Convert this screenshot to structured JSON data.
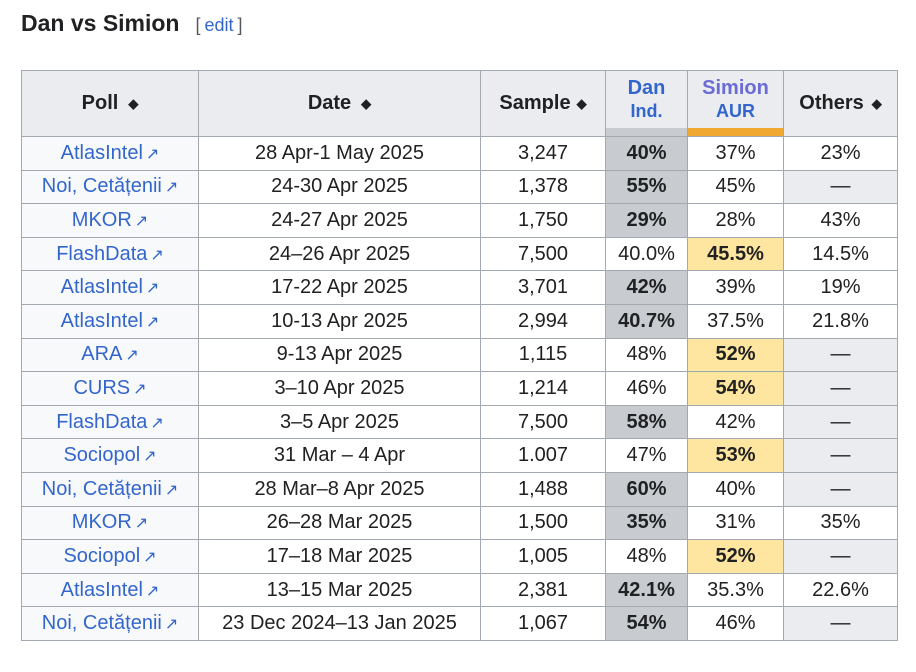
{
  "heading": {
    "title": "Dan vs Simion",
    "edit_label": "edit",
    "bracket_open": "[",
    "bracket_close": "]"
  },
  "columns": {
    "poll": "Poll",
    "date": "Date",
    "sample": "Sample",
    "dan_name": "Dan",
    "dan_party": "Ind.",
    "simion_name": "Simion",
    "simion_party": "AUR",
    "others": "Others"
  },
  "colors": {
    "dan": "#c8ccd1",
    "simion": "#f0a830",
    "simion_win": "#ffe6a0",
    "link": "#3366cc",
    "dan_header": "#3366cc",
    "simion_header": "#6b6bd6"
  },
  "rows": [
    {
      "poll": "AtlasIntel",
      "date": "28 Apr-1 May 2025",
      "sample": "3,247",
      "dan": "40%",
      "simion": "37%",
      "others": "23%",
      "winner": "dan"
    },
    {
      "poll": "Noi, Cetățenii",
      "date": "24-30 Apr 2025",
      "sample": "1,378",
      "dan": "55%",
      "simion": "45%",
      "others": "—",
      "winner": "dan"
    },
    {
      "poll": "MKOR",
      "date": "24-27 Apr 2025",
      "sample": "1,750",
      "dan": "29%",
      "simion": "28%",
      "others": "43%",
      "winner": "dan"
    },
    {
      "poll": "FlashData",
      "date": "24–26 Apr 2025",
      "sample": "7,500",
      "dan": "40.0%",
      "simion": "45.5%",
      "others": "14.5%",
      "winner": "simion"
    },
    {
      "poll": "AtlasIntel",
      "date": "17-22 Apr 2025",
      "sample": "3,701",
      "dan": "42%",
      "simion": "39%",
      "others": "19%",
      "winner": "dan"
    },
    {
      "poll": "AtlasIntel",
      "date": "10-13 Apr 2025",
      "sample": "2,994",
      "dan": "40.7%",
      "simion": "37.5%",
      "others": "21.8%",
      "winner": "dan"
    },
    {
      "poll": "ARA",
      "date": "9-13 Apr 2025",
      "sample": "1,115",
      "dan": "48%",
      "simion": "52%",
      "others": "—",
      "winner": "simion"
    },
    {
      "poll": "CURS",
      "date": "3–10 Apr 2025",
      "sample": "1,214",
      "dan": "46%",
      "simion": "54%",
      "others": "—",
      "winner": "simion"
    },
    {
      "poll": "FlashData",
      "date": "3–5 Apr 2025",
      "sample": "7,500",
      "dan": "58%",
      "simion": "42%",
      "others": "—",
      "winner": "dan"
    },
    {
      "poll": "Sociopol",
      "date": "31 Mar – 4 Apr",
      "sample": "1.007",
      "dan": "47%",
      "simion": "53%",
      "others": "—",
      "winner": "simion"
    },
    {
      "poll": "Noi, Cetățenii",
      "date": "28 Mar–8 Apr 2025",
      "sample": "1,488",
      "dan": "60%",
      "simion": "40%",
      "others": "—",
      "winner": "dan"
    },
    {
      "poll": "MKOR",
      "date": "26–28 Mar 2025",
      "sample": "1,500",
      "dan": "35%",
      "simion": "31%",
      "others": "35%",
      "winner": "dan"
    },
    {
      "poll": "Sociopol",
      "date": "17–18 Mar 2025",
      "sample": "1,005",
      "dan": "48%",
      "simion": "52%",
      "others": "—",
      "winner": "simion"
    },
    {
      "poll": "AtlasIntel",
      "date": "13–15 Mar 2025",
      "sample": "2,381",
      "dan": "42.1%",
      "simion": "35.3%",
      "others": "22.6%",
      "winner": "dan"
    },
    {
      "poll": "Noi, Cetățenii",
      "date": "23 Dec 2024–13 Jan 2025",
      "sample": "1,067",
      "dan": "54%",
      "simion": "46%",
      "others": "—",
      "winner": "dan"
    }
  ]
}
